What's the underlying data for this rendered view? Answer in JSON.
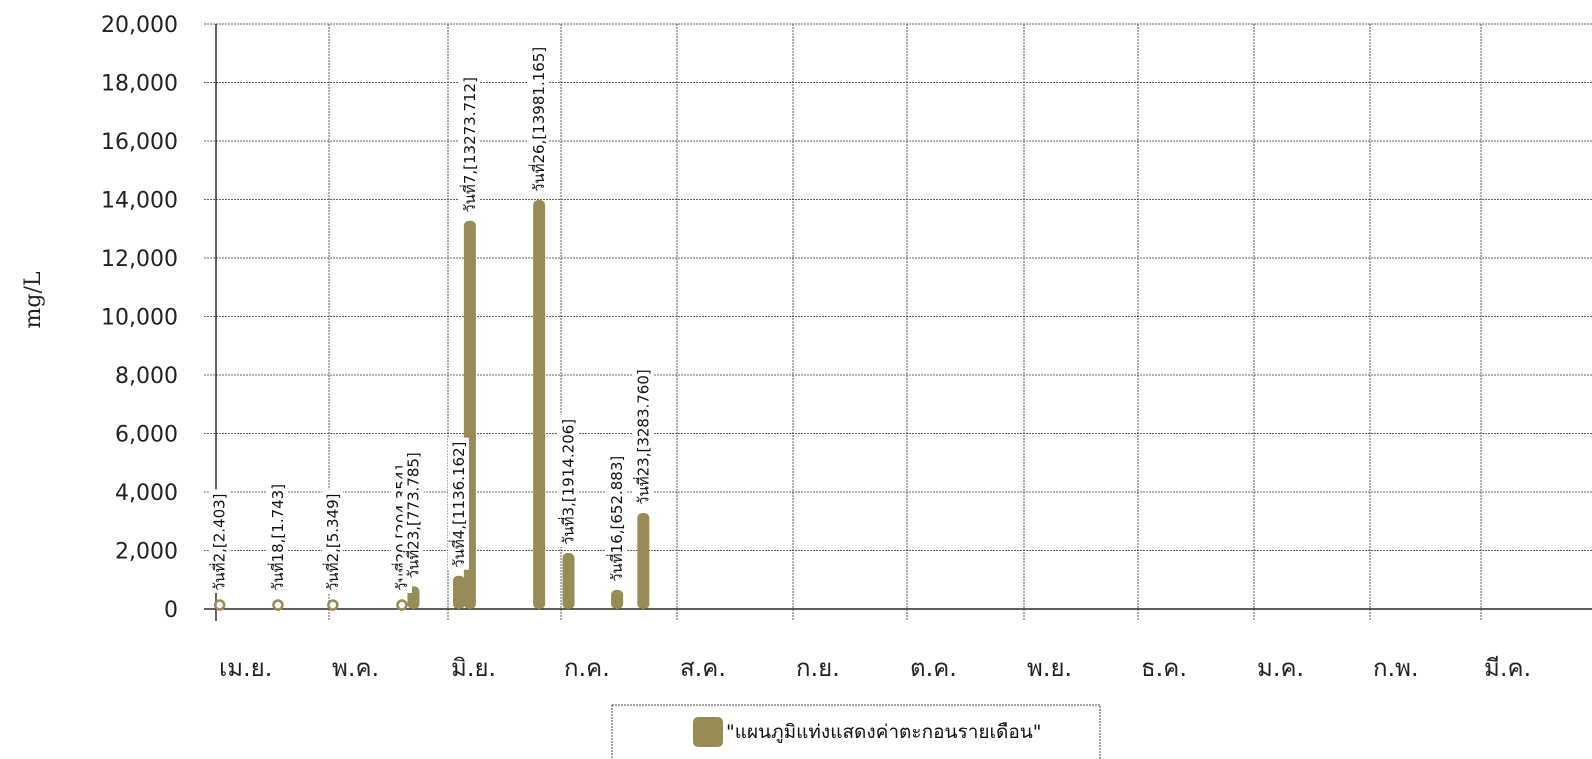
{
  "chart_data": {
    "type": "bar",
    "ylabel": "mg/L",
    "xlabel": "",
    "ylim": [
      0,
      20000
    ],
    "yticks": [
      "20,000",
      "18,000",
      "16,000",
      "14,000",
      "12,000",
      "10,000",
      "8,000",
      "6,000",
      "4,000",
      "2,000",
      "0"
    ],
    "months": [
      "เม.ย.",
      "พ.ค.",
      "มิ.ย.",
      "ก.ค.",
      "ส.ค.",
      "ก.ย.",
      "ต.ค.",
      "พ.ย.",
      "ธ.ค.",
      "ม.ค.",
      "ก.พ.",
      "มี.ค."
    ],
    "grid": true,
    "legend_position": "bottom",
    "series": [
      {
        "name": "\"แผนภูมิแท่งแสดงค่าตะกอนรายเดือน\"",
        "color": "#978c55",
        "points": [
          {
            "month": 0,
            "day": 2,
            "value": 2.403,
            "label": "วันที่2,[2.403]"
          },
          {
            "month": 0,
            "day": 18,
            "value": 1.743,
            "label": "วันที่18,[1.743]"
          },
          {
            "month": 1,
            "day": 2,
            "value": 5.349,
            "label": "วันที่2,[5.349]"
          },
          {
            "month": 1,
            "day": 20,
            "value": 204.354,
            "label": "วันที่20,[204.354]"
          },
          {
            "month": 1,
            "day": 23,
            "value": 773.785,
            "label": "วันที่23,[773.785]"
          },
          {
            "month": 2,
            "day": 4,
            "value": 1136.162,
            "label": "วันที่4,[1136.162]"
          },
          {
            "month": 2,
            "day": 7,
            "value": 13273.712,
            "label": "วันที่7,[13273.712]"
          },
          {
            "month": 2,
            "day": 26,
            "value": 13981.165,
            "label": "วันที่26,[13981.165]"
          },
          {
            "month": 3,
            "day": 3,
            "value": 1914.206,
            "label": "วันที่3,[1914.206]"
          },
          {
            "month": 3,
            "day": 16,
            "value": 652.883,
            "label": "วันที่16,[652.883]"
          },
          {
            "month": 3,
            "day": 23,
            "value": 3283.76,
            "label": "วันที่23,[3283.760]"
          }
        ]
      }
    ]
  }
}
